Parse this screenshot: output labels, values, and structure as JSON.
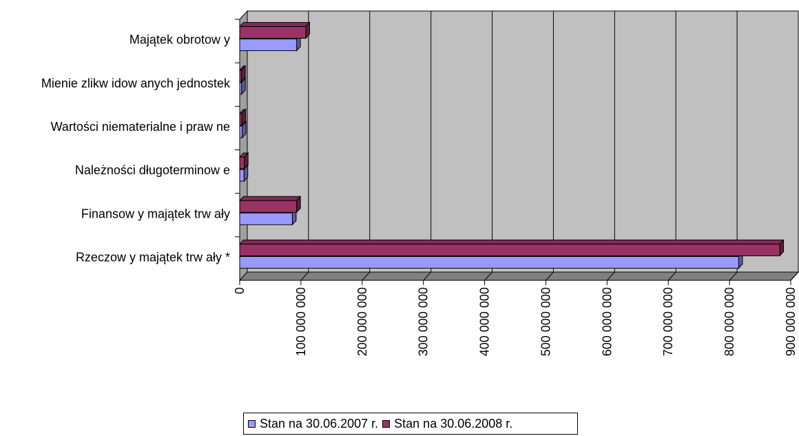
{
  "chart_data": {
    "type": "bar",
    "orientation": "horizontal",
    "three_d": true,
    "categories": [
      "Rzeczow y majątek trw ały *",
      "Finansow y majątek trw ały",
      "Należności długoterminow e",
      "Wartości niematerialne i praw ne",
      "Mienie zlikw idow anych jednostek",
      "Majątek obrotow y"
    ],
    "series": [
      {
        "name": "Stan na 30.06.2007 r.",
        "color": "#9999ff",
        "values": [
          815000000,
          86000000,
          7000000,
          4000000,
          3000000,
          93000000
        ]
      },
      {
        "name": "Stan na 30.06.2008 r.",
        "color": "#993366",
        "values": [
          882000000,
          93000000,
          7500000,
          3500000,
          3000000,
          108000000
        ]
      }
    ],
    "xlim": [
      0,
      900000000
    ],
    "x_tick_labels": [
      "0",
      "100 000 000",
      "200 000 000",
      "300 000 000",
      "400 000 000",
      "500 000 000",
      "600 000 000",
      "700 000 000",
      "800 000 000",
      "900 000 000"
    ],
    "title": "",
    "xlabel": "",
    "ylabel": "",
    "grid": true,
    "legend_position": "bottom",
    "colors": {
      "wall": "#c0c0c0",
      "floor": "#808080",
      "grid": "#000000"
    }
  }
}
